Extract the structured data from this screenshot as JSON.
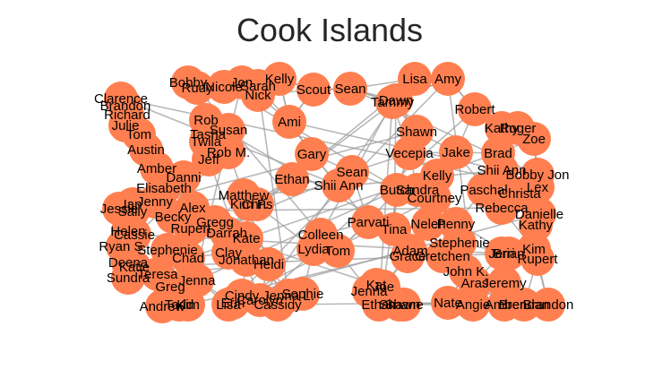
{
  "title": "Cook Islands",
  "colors": {
    "node": "#ff7f50",
    "edge": "#a0a0a0",
    "label": "#000000",
    "background": "#ffffff"
  },
  "nodes": [
    "Clarence",
    "Brandon",
    "Richard",
    "Julie",
    "Tom",
    "Austin",
    "Amber",
    "Elisabeth",
    "Jenny",
    "Ian",
    "Jessie",
    "Sally",
    "Helen",
    "Cassie",
    "Ryan S.",
    "Deena",
    "Katie",
    "Sundra",
    "Teresa",
    "Greg",
    "Andrew",
    "Todd",
    "Kim",
    "Lisa",
    "Erin",
    "Cindy",
    "Carolyn",
    "Cassidy",
    "Bobby",
    "Rudy",
    "Nicole",
    "Jon",
    "Sarah",
    "Kelly",
    "Nick",
    "Rob",
    "Tasha",
    "Susan",
    "Twila",
    "Jeff",
    "Rob M.",
    "Danni",
    "Alex",
    "Becky",
    "Rupert",
    "Gregg",
    "Matthew",
    "Kim P.",
    "Chris",
    "Clay",
    "Darrah",
    "Kate",
    "Stephenie",
    "Jonathan",
    "Heidi",
    "Chad",
    "Jenna",
    "Colleen",
    "Lydia",
    "Ami",
    "Scout",
    "Sean",
    "Gary",
    "Ethan",
    "Shii Ann",
    "Butch",
    "Parvati",
    "Tina",
    "Adam",
    "Lisa",
    "Amy",
    "Tammy",
    "Dawn",
    "Shawn",
    "Vecepia",
    "Jake",
    "Robert",
    "Kathy",
    "Brad",
    "Roger",
    "Zoe",
    "Shii Ann",
    "Bobby Jon",
    "Lex",
    "Christa",
    "Rebecca",
    "Danielle",
    "Kathy",
    "Penny",
    "Neleh",
    "Stephenie",
    "Grace",
    "Gretchen",
    "Jerri",
    "Brian",
    "Rupert",
    "Kim",
    "John K.",
    "Aras",
    "Jeremy",
    "Brendan",
    "Nate",
    "Angie",
    "Amber",
    "Brandon",
    "Jenna",
    "Kat",
    "Ethan",
    "Shane",
    "Shawn",
    "Sean",
    "Sandra",
    "Courtney",
    "Kelly",
    "Paschal",
    "Tom",
    "Joe",
    "Sophie",
    "Jenna L."
  ]
}
